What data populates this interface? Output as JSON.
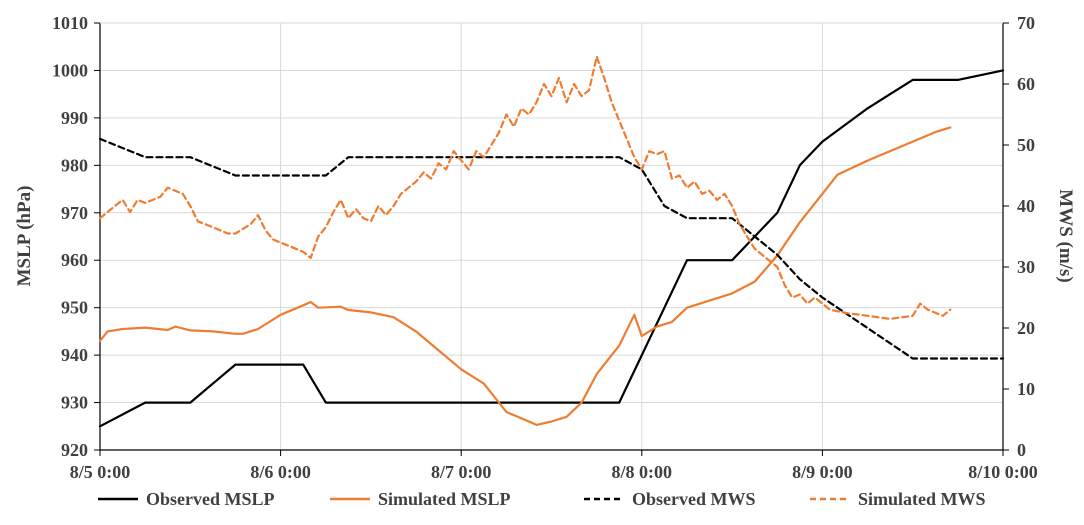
{
  "chart_data": {
    "type": "line",
    "x_axis": {
      "min": "8/5 0:00",
      "max": "8/10 0:00",
      "tick_labels": [
        "8/5 0:00",
        "8/6 0:00",
        "8/7 0:00",
        "8/8 0:00",
        "8/9 0:00",
        "8/10 0:00"
      ],
      "grid": true
    },
    "y_left": {
      "label": "MSLP (hPa)",
      "min": 920,
      "max": 1010,
      "step": 10,
      "tick_labels": [
        "920",
        "930",
        "940",
        "950",
        "960",
        "970",
        "980",
        "990",
        "1000",
        "1010"
      ]
    },
    "y_right": {
      "label": "MWS (m/s)",
      "min": 0,
      "max": 70,
      "step": 10,
      "tick_labels": [
        "0",
        "10",
        "20",
        "30",
        "40",
        "50",
        "60",
        "70"
      ]
    },
    "legend_position": "bottom",
    "series": [
      {
        "name": "Observed MSLP",
        "axis": "left",
        "color": "#000000",
        "dash": "solid",
        "points": [
          [
            "8/5 0:00",
            925
          ],
          [
            "8/5 6:00",
            930
          ],
          [
            "8/5 12:00",
            930
          ],
          [
            "8/5 18:00",
            938
          ],
          [
            "8/6 0:00",
            938
          ],
          [
            "8/6 3:00",
            938
          ],
          [
            "8/6 6:00",
            930
          ],
          [
            "8/6 12:00",
            930
          ],
          [
            "8/6 18:00",
            930
          ],
          [
            "8/7 0:00",
            930
          ],
          [
            "8/7 6:00",
            930
          ],
          [
            "8/7 12:00",
            930
          ],
          [
            "8/7 18:00",
            930
          ],
          [
            "8/7 21:00",
            930
          ],
          [
            "8/8 6:00",
            960
          ],
          [
            "8/8 12:00",
            960
          ],
          [
            "8/8 18:00",
            970
          ],
          [
            "8/8 21:00",
            980
          ],
          [
            "8/9 0:00",
            985
          ],
          [
            "8/9 6:00",
            992
          ],
          [
            "8/9 12:00",
            998
          ],
          [
            "8/9 18:00",
            998
          ],
          [
            "8/10 0:00",
            1000
          ]
        ]
      },
      {
        "name": "Simulated MSLP",
        "axis": "left",
        "color": "#ED7D31",
        "dash": "solid",
        "points": [
          [
            "8/5 0:00",
            943
          ],
          [
            "8/5 1:00",
            945
          ],
          [
            "8/5 3:00",
            945.5
          ],
          [
            "8/5 6:00",
            945.8
          ],
          [
            "8/5 9:00",
            945.3
          ],
          [
            "8/5 10:00",
            946
          ],
          [
            "8/5 12:00",
            945.2
          ],
          [
            "8/5 15:00",
            945
          ],
          [
            "8/5 18:00",
            944.5
          ],
          [
            "8/5 19:00",
            944.5
          ],
          [
            "8/5 21:00",
            945.5
          ],
          [
            "8/6 0:00",
            948.5
          ],
          [
            "8/6 3:00",
            950.5
          ],
          [
            "8/6 4:00",
            951.2
          ],
          [
            "8/6 5:00",
            950
          ],
          [
            "8/6 8:00",
            950.2
          ],
          [
            "8/6 9:00",
            949.5
          ],
          [
            "8/6 12:00",
            949
          ],
          [
            "8/6 15:00",
            948
          ],
          [
            "8/6 18:00",
            945
          ],
          [
            "8/6 21:00",
            941
          ],
          [
            "8/7 0:00",
            937
          ],
          [
            "8/7 3:00",
            934
          ],
          [
            "8/7 6:00",
            928
          ],
          [
            "8/7 9:00",
            926
          ],
          [
            "8/7 10:00",
            925.3
          ],
          [
            "8/7 12:00",
            926
          ],
          [
            "8/7 14:00",
            927
          ],
          [
            "8/7 16:00",
            930
          ],
          [
            "8/7 18:00",
            936
          ],
          [
            "8/7 21:00",
            942
          ],
          [
            "8/7 23:00",
            948.5
          ],
          [
            "8/8 0:00",
            944
          ],
          [
            "8/8 2:00",
            946
          ],
          [
            "8/8 4:00",
            947
          ],
          [
            "8/8 6:00",
            950
          ],
          [
            "8/8 9:00",
            951.5
          ],
          [
            "8/8 12:00",
            953
          ],
          [
            "8/8 15:00",
            955.5
          ],
          [
            "8/8 18:00",
            961
          ],
          [
            "8/8 21:00",
            968
          ],
          [
            "8/9 0:00",
            974
          ],
          [
            "8/9 2:00",
            978
          ],
          [
            "8/9 6:00",
            981
          ],
          [
            "8/9 9:00",
            983
          ],
          [
            "8/9 12:00",
            985
          ],
          [
            "8/9 15:00",
            987
          ],
          [
            "8/9 17:00",
            988
          ]
        ]
      },
      {
        "name": "Observed MWS",
        "axis": "right",
        "color": "#000000",
        "dash": "dashed",
        "points": [
          [
            "8/5 0:00",
            51
          ],
          [
            "8/5 6:00",
            48
          ],
          [
            "8/5 12:00",
            48
          ],
          [
            "8/5 18:00",
            45
          ],
          [
            "8/6 0:00",
            45
          ],
          [
            "8/6 6:00",
            45
          ],
          [
            "8/6 9:00",
            48
          ],
          [
            "8/6 12:00",
            48
          ],
          [
            "8/6 18:00",
            48
          ],
          [
            "8/7 0:00",
            48
          ],
          [
            "8/7 6:00",
            48
          ],
          [
            "8/7 12:00",
            48
          ],
          [
            "8/7 18:00",
            48
          ],
          [
            "8/7 21:00",
            48
          ],
          [
            "8/8 0:00",
            46
          ],
          [
            "8/8 3:00",
            40
          ],
          [
            "8/8 6:00",
            38
          ],
          [
            "8/8 12:00",
            38
          ],
          [
            "8/8 18:00",
            32
          ],
          [
            "8/8 21:00",
            28
          ],
          [
            "8/9 0:00",
            25
          ],
          [
            "8/9 6:00",
            20
          ],
          [
            "8/9 12:00",
            15
          ],
          [
            "8/9 18:00",
            15
          ],
          [
            "8/10 0:00",
            15
          ]
        ]
      },
      {
        "name": "Simulated MWS",
        "axis": "right",
        "color": "#ED7D31",
        "dash": "dashed",
        "points": [
          [
            "8/5 0:00",
            38
          ],
          [
            "8/5 1:00",
            39
          ],
          [
            "8/5 2:00",
            40
          ],
          [
            "8/5 3:00",
            41
          ],
          [
            "8/5 4:00",
            39
          ],
          [
            "8/5 5:00",
            41
          ],
          [
            "8/5 6:00",
            40.5
          ],
          [
            "8/5 7:00",
            41
          ],
          [
            "8/5 8:00",
            41.5
          ],
          [
            "8/5 9:00",
            43
          ],
          [
            "8/5 10:00",
            42.5
          ],
          [
            "8/5 11:00",
            42
          ],
          [
            "8/5 12:00",
            40
          ],
          [
            "8/5 13:00",
            37.5
          ],
          [
            "8/5 14:00",
            37
          ],
          [
            "8/5 15:00",
            36.5
          ],
          [
            "8/5 16:00",
            36
          ],
          [
            "8/5 17:00",
            35.5
          ],
          [
            "8/5 18:00",
            35.5
          ],
          [
            "8/5 20:00",
            37
          ],
          [
            "8/5 21:00",
            38.5
          ],
          [
            "8/5 22:00",
            36
          ],
          [
            "8/5 23:00",
            34.5
          ],
          [
            "8/6 0:00",
            34
          ],
          [
            "8/6 1:00",
            33.5
          ],
          [
            "8/6 2:00",
            33
          ],
          [
            "8/6 3:00",
            32.5
          ],
          [
            "8/6 4:00",
            31.5
          ],
          [
            "8/6 5:00",
            35
          ],
          [
            "8/6 6:00",
            36.5
          ],
          [
            "8/6 7:00",
            39
          ],
          [
            "8/6 8:00",
            41
          ],
          [
            "8/6 9:00",
            38
          ],
          [
            "8/6 10:00",
            39.5
          ],
          [
            "8/6 11:00",
            38
          ],
          [
            "8/6 12:00",
            37.5
          ],
          [
            "8/6 13:00",
            40
          ],
          [
            "8/6 14:00",
            38.5
          ],
          [
            "8/6 15:00",
            40
          ],
          [
            "8/6 16:00",
            42
          ],
          [
            "8/6 17:00",
            43
          ],
          [
            "8/6 18:00",
            44
          ],
          [
            "8/6 19:00",
            45.5
          ],
          [
            "8/6 20:00",
            44.5
          ],
          [
            "8/6 21:00",
            47
          ],
          [
            "8/6 22:00",
            46
          ],
          [
            "8/6 23:00",
            49
          ],
          [
            "8/7 0:00",
            47.5
          ],
          [
            "8/7 1:00",
            46
          ],
          [
            "8/7 2:00",
            49
          ],
          [
            "8/7 3:00",
            48
          ],
          [
            "8/7 4:00",
            50
          ],
          [
            "8/7 5:00",
            52
          ],
          [
            "8/7 6:00",
            55
          ],
          [
            "8/7 7:00",
            53
          ],
          [
            "8/7 8:00",
            56
          ],
          [
            "8/7 9:00",
            55
          ],
          [
            "8/7 10:00",
            57
          ],
          [
            "8/7 11:00",
            60
          ],
          [
            "8/7 12:00",
            58
          ],
          [
            "8/7 13:00",
            61
          ],
          [
            "8/7 14:00",
            57
          ],
          [
            "8/7 15:00",
            60
          ],
          [
            "8/7 16:00",
            58
          ],
          [
            "8/7 17:00",
            59
          ],
          [
            "8/7 18:00",
            64.5
          ],
          [
            "8/7 19:00",
            61
          ],
          [
            "8/7 20:00",
            57
          ],
          [
            "8/7 21:00",
            54
          ],
          [
            "8/7 22:00",
            51
          ],
          [
            "8/7 23:00",
            48
          ],
          [
            "8/8 0:00",
            46
          ],
          [
            "8/8 1:00",
            49
          ],
          [
            "8/8 2:00",
            48.5
          ],
          [
            "8/8 3:00",
            49
          ],
          [
            "8/8 4:00",
            44.5
          ],
          [
            "8/8 5:00",
            45
          ],
          [
            "8/8 6:00",
            43
          ],
          [
            "8/8 7:00",
            44
          ],
          [
            "8/8 8:00",
            42
          ],
          [
            "8/8 9:00",
            42.5
          ],
          [
            "8/8 10:00",
            41
          ],
          [
            "8/8 11:00",
            42
          ],
          [
            "8/8 12:00",
            40
          ],
          [
            "8/8 13:00",
            37
          ],
          [
            "8/8 14:00",
            35
          ],
          [
            "8/8 15:00",
            33
          ],
          [
            "8/8 16:00",
            32
          ],
          [
            "8/8 17:00",
            31
          ],
          [
            "8/8 18:00",
            30
          ],
          [
            "8/8 19:00",
            27
          ],
          [
            "8/8 20:00",
            25
          ],
          [
            "8/8 21:00",
            25.5
          ],
          [
            "8/8 22:00",
            24
          ],
          [
            "8/8 23:00",
            25
          ],
          [
            "8/9 0:00",
            24
          ],
          [
            "8/9 1:00",
            23
          ],
          [
            "8/9 3:00",
            22.5
          ],
          [
            "8/9 6:00",
            22
          ],
          [
            "8/9 9:00",
            21.5
          ],
          [
            "8/9 12:00",
            22
          ],
          [
            "8/9 13:00",
            24
          ],
          [
            "8/9 14:00",
            23
          ],
          [
            "8/9 16:00",
            22
          ],
          [
            "8/9 17:00",
            23
          ]
        ]
      }
    ]
  }
}
